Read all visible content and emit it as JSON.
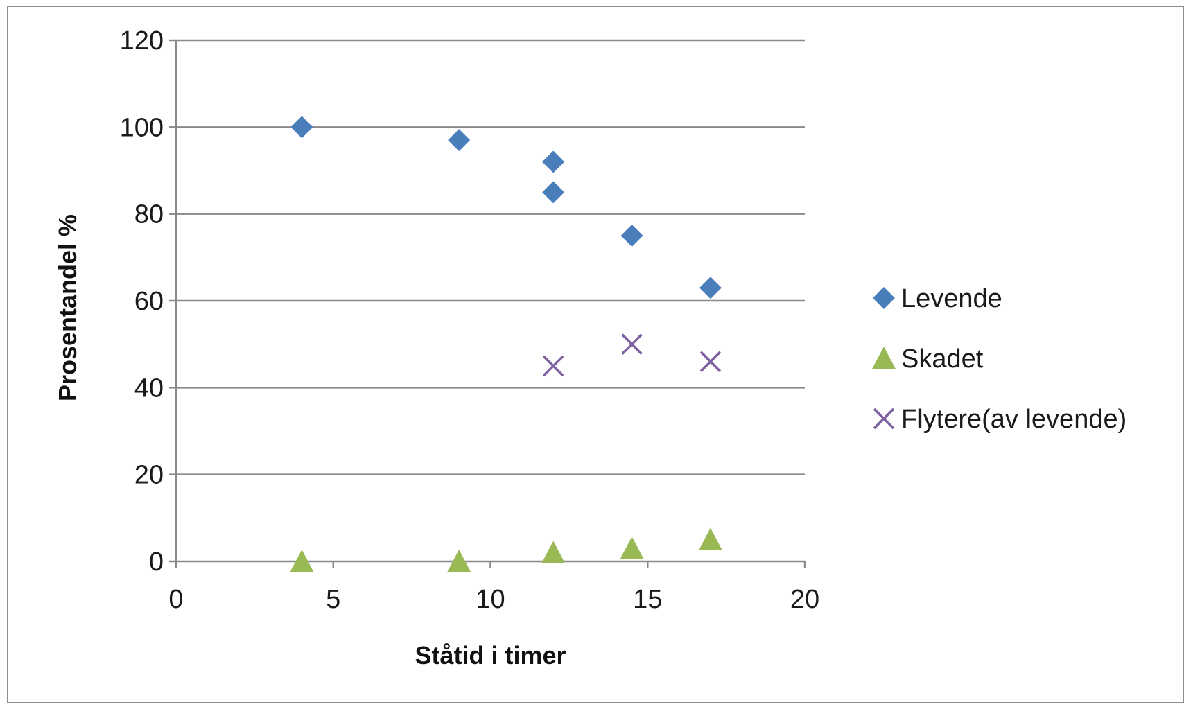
{
  "chart_data": {
    "type": "scatter",
    "title": "",
    "xlabel": "Ståtid  i timer",
    "ylabel": "Prosentandel %",
    "xlim": [
      0,
      20
    ],
    "ylim": [
      0,
      120
    ],
    "xticks": [
      "0",
      "5",
      "10",
      "15",
      "20"
    ],
    "yticks": [
      "0",
      "20",
      "40",
      "60",
      "80",
      "100",
      "120"
    ],
    "grid": "horizontal",
    "legend_position": "right",
    "series": [
      {
        "name": "Levende",
        "marker": "diamond",
        "color": "#4a7ebb",
        "points": [
          [
            4,
            100
          ],
          [
            9,
            97
          ],
          [
            12,
            92
          ],
          [
            12,
            85
          ],
          [
            14.5,
            75
          ],
          [
            17,
            63
          ]
        ]
      },
      {
        "name": "Skadet",
        "marker": "triangle",
        "color": "#98b954",
        "points": [
          [
            4,
            0
          ],
          [
            9,
            0
          ],
          [
            12,
            2
          ],
          [
            14.5,
            3
          ],
          [
            17,
            5
          ]
        ]
      },
      {
        "name": "Flytere(av levende)",
        "marker": "x",
        "color": "#7d60a0",
        "points": [
          [
            12,
            45
          ],
          [
            14.5,
            50
          ],
          [
            17,
            46
          ]
        ]
      }
    ]
  }
}
